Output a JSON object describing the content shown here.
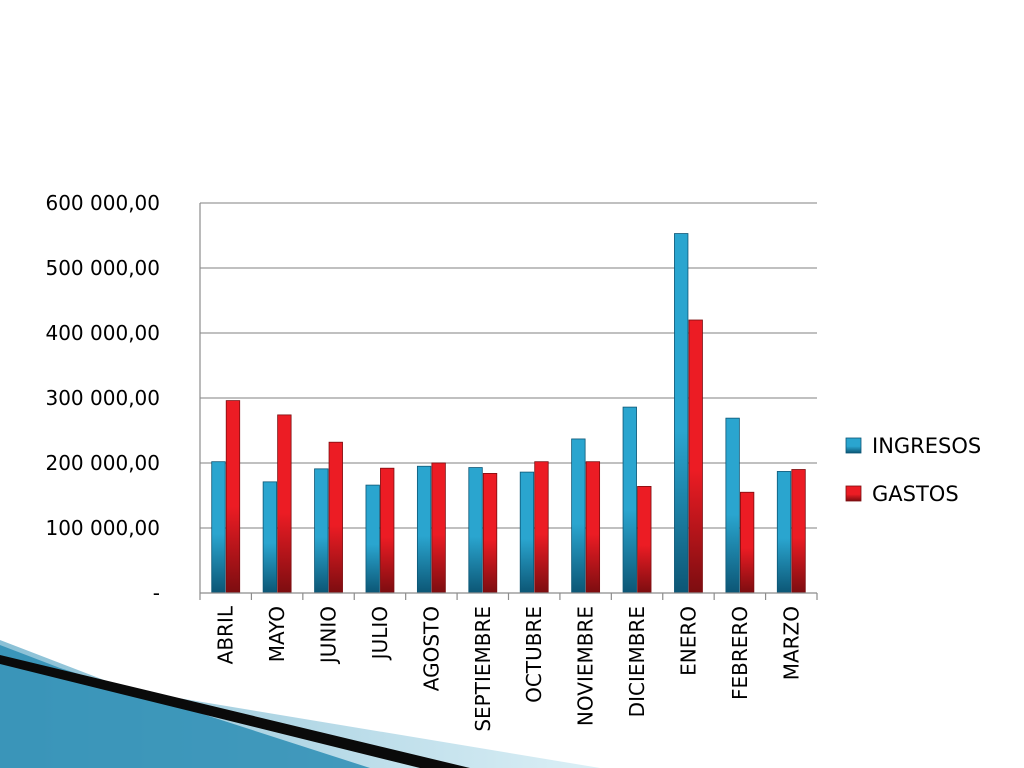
{
  "colors": {
    "ingresos": "#2aa5cf",
    "ingresos_dark": "#0c5675",
    "gastos": "#ec1c24",
    "gastos_dark": "#7c0d10",
    "grid": "#9a9a9a",
    "axis": "#8c8c8c",
    "decor_light": "#bfe3ef",
    "decor_mid": "#2b8db4",
    "decor_dark": "#0a0a0a"
  },
  "chart_data": {
    "type": "bar",
    "title": "",
    "xlabel": "",
    "ylabel": "",
    "categories": [
      "ABRIL",
      "MAYO",
      "JUNIO",
      "JULIO",
      "AGOSTO",
      "SEPTIEMBRE",
      "OCTUBRE",
      "NOVIEMBRE",
      "DICIEMBRE",
      "ENERO",
      "FEBRERO",
      "MARZO"
    ],
    "series": [
      {
        "name": "INGRESOS",
        "values": [
          202000,
          171000,
          191000,
          166000,
          195000,
          193000,
          186000,
          237000,
          286000,
          553000,
          269000,
          187000
        ]
      },
      {
        "name": "GASTOS",
        "values": [
          296000,
          274000,
          232000,
          192000,
          200000,
          184000,
          202000,
          202000,
          164000,
          420000,
          155000,
          190000
        ]
      }
    ],
    "ylim": [
      0,
      600000
    ],
    "yticks": [
      0,
      100000,
      200000,
      300000,
      400000,
      500000,
      600000
    ],
    "ytick_labels": [
      "-",
      "100 000,00",
      "200 000,00",
      "300 000,00",
      "400 000,00",
      "500 000,00",
      "600 000,00"
    ],
    "grid": true,
    "legend_position": "right"
  }
}
